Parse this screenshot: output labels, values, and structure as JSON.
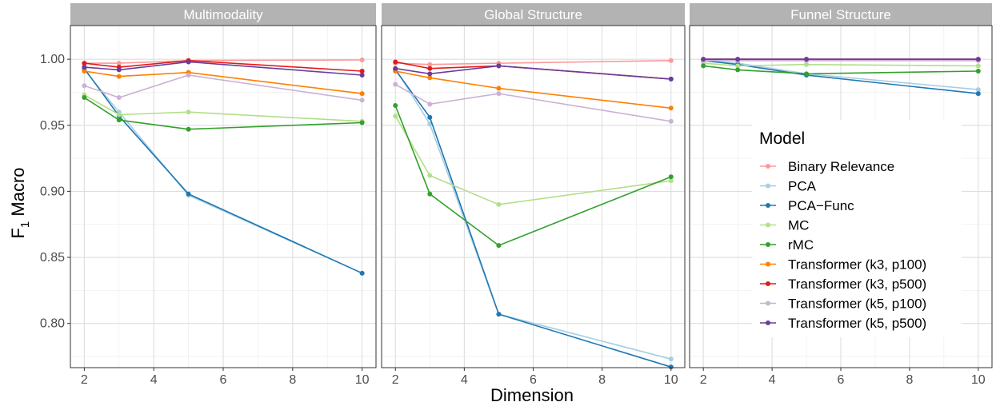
{
  "chart_data": {
    "type": "line",
    "ylabel": "F",
    "ylabel_sub": "1",
    "ylabel_rest": " Macro",
    "xlabel": "Dimension",
    "x": [
      2,
      3,
      5,
      10
    ],
    "xlim": [
      1.6,
      10.4
    ],
    "ylim": [
      0.7665,
      1.0255
    ],
    "x_ticks": [
      2,
      4,
      6,
      8,
      10
    ],
    "y_ticks": [
      0.8,
      0.85,
      0.9,
      0.95,
      1.0
    ],
    "y_tick_labels": [
      "0.80",
      "0.85",
      "0.90",
      "0.95",
      "1.00"
    ],
    "grid": true,
    "legend": {
      "title": "Model",
      "placement": "inside right panel",
      "entries": [
        "Binary Relevance",
        "PCA",
        "PCA−Func",
        "MC",
        "rMC",
        "Transformer (k3, p100)",
        "Transformer (k3, p500)",
        "Transformer (k5, p100)",
        "Transformer (k5, p500)"
      ]
    },
    "series_styles": [
      {
        "name": "Binary Relevance",
        "color": "#fb9a99"
      },
      {
        "name": "PCA",
        "color": "#a6cee3"
      },
      {
        "name": "PCA−Func",
        "color": "#1f78b4"
      },
      {
        "name": "MC",
        "color": "#b2df8a"
      },
      {
        "name": "rMC",
        "color": "#33a02c"
      },
      {
        "name": "Transformer (k3, p100)",
        "color": "#ff7f00"
      },
      {
        "name": "Transformer (k3, p500)",
        "color": "#e31a1c"
      },
      {
        "name": "Transformer (k5, p100)",
        "color": "#cab2d6"
      },
      {
        "name": "Transformer (k5, p500)",
        "color": "#6a3d9a"
      }
    ],
    "panels": [
      {
        "title": "Multimodality",
        "series": [
          {
            "name": "Binary Relevance",
            "values": [
              0.997,
              0.997,
              0.999,
              0.9995
            ]
          },
          {
            "name": "PCA",
            "values": [
              0.992,
              0.96,
              0.897,
              0.838
            ]
          },
          {
            "name": "PCA−Func",
            "values": [
              0.993,
              0.957,
              0.898,
              0.838
            ]
          },
          {
            "name": "MC",
            "values": [
              0.973,
              0.958,
              0.96,
              0.953
            ]
          },
          {
            "name": "rMC",
            "values": [
              0.971,
              0.954,
              0.947,
              0.952
            ]
          },
          {
            "name": "Transformer (k3, p100)",
            "values": [
              0.991,
              0.987,
              0.99,
              0.974
            ]
          },
          {
            "name": "Transformer (k3, p500)",
            "values": [
              0.997,
              0.994,
              0.999,
              0.991
            ]
          },
          {
            "name": "Transformer (k5, p100)",
            "values": [
              0.98,
              0.971,
              0.988,
              0.969
            ]
          },
          {
            "name": "Transformer (k5, p500)",
            "values": [
              0.994,
              0.992,
              0.998,
              0.988
            ]
          }
        ]
      },
      {
        "title": "Global Structure",
        "series": [
          {
            "name": "Binary Relevance",
            "values": [
              0.997,
              0.996,
              0.997,
              0.999
            ]
          },
          {
            "name": "PCA",
            "values": [
              0.993,
              0.951,
              0.807,
              0.773
            ]
          },
          {
            "name": "PCA−Func",
            "values": [
              0.992,
              0.956,
              0.807,
              0.767
            ]
          },
          {
            "name": "MC",
            "values": [
              0.957,
              0.912,
              0.89,
              0.908
            ]
          },
          {
            "name": "rMC",
            "values": [
              0.965,
              0.898,
              0.859,
              0.911
            ]
          },
          {
            "name": "Transformer (k3, p100)",
            "values": [
              0.991,
              0.986,
              0.978,
              0.963
            ]
          },
          {
            "name": "Transformer (k3, p500)",
            "values": [
              0.998,
              0.993,
              0.995,
              0.985
            ]
          },
          {
            "name": "Transformer (k5, p100)",
            "values": [
              0.981,
              0.966,
              0.974,
              0.953
            ]
          },
          {
            "name": "Transformer (k5, p500)",
            "values": [
              0.993,
              0.989,
              0.995,
              0.985
            ]
          }
        ]
      },
      {
        "title": "Funnel Structure",
        "series": [
          {
            "name": "Binary Relevance",
            "values": [
              0.999,
              0.999,
              0.999,
              0.999
            ]
          },
          {
            "name": "PCA",
            "values": [
              0.999,
              0.997,
              0.989,
              0.977
            ]
          },
          {
            "name": "PCA−Func",
            "values": [
              0.999,
              0.996,
              0.988,
              0.974
            ]
          },
          {
            "name": "MC",
            "values": [
              0.997,
              0.995,
              0.996,
              0.995
            ]
          },
          {
            "name": "rMC",
            "values": [
              0.995,
              0.992,
              0.989,
              0.991
            ]
          },
          {
            "name": "Transformer (k3, p100)",
            "values": [
              0.9995,
              0.9995,
              0.9995,
              0.9995
            ]
          },
          {
            "name": "Transformer (k3, p500)",
            "values": [
              1.0,
              1.0,
              1.0,
              1.0
            ]
          },
          {
            "name": "Transformer (k5, p100)",
            "values": [
              0.999,
              0.999,
              0.999,
              0.999
            ]
          },
          {
            "name": "Transformer (k5, p500)",
            "values": [
              1.0,
              1.0,
              1.0,
              1.0
            ]
          }
        ]
      }
    ]
  }
}
